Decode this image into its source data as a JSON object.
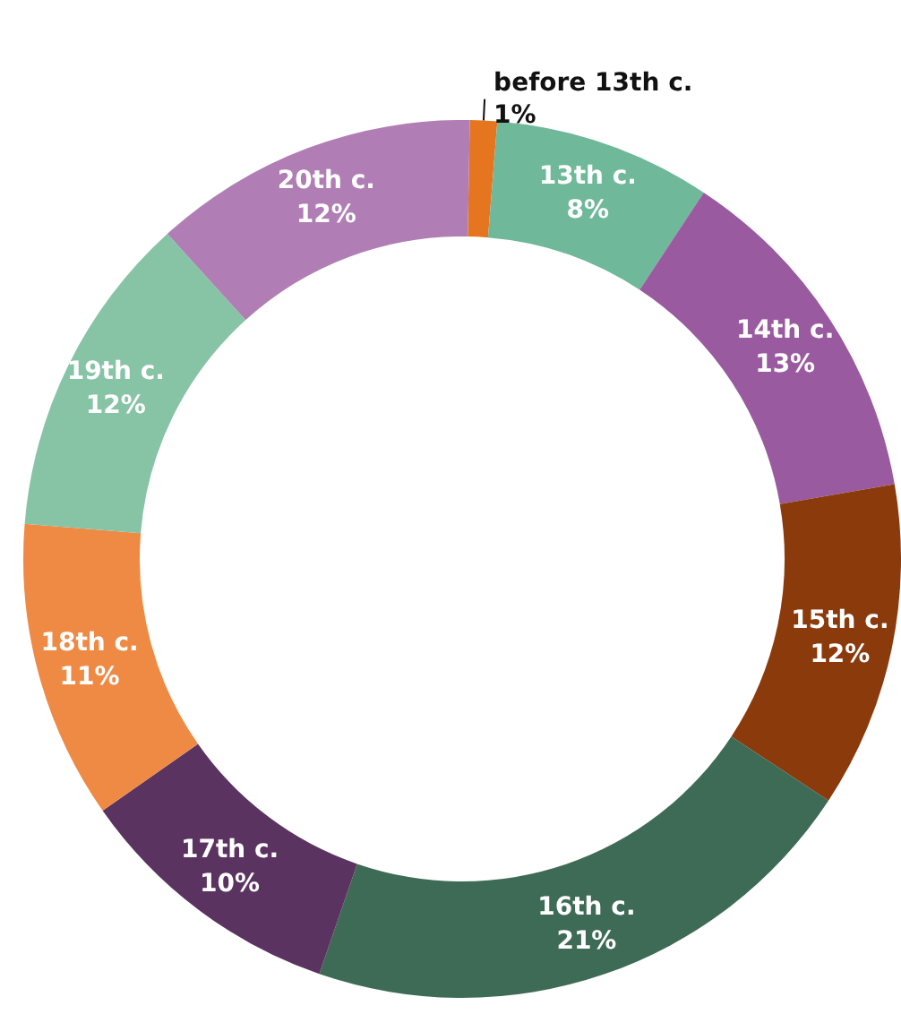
{
  "chart_data": {
    "type": "donut",
    "categories": [
      "before 13th c.",
      "13th c.",
      "14th c.",
      "15th c.",
      "16th c.",
      "17th c.",
      "18th c.",
      "19th c.",
      "20th c."
    ],
    "values": [
      1,
      8,
      13,
      12,
      21,
      10,
      11,
      12,
      12
    ],
    "value_labels": [
      "1%",
      "8%",
      "13%",
      "12%",
      "21%",
      "10%",
      "11%",
      "12%",
      "12%"
    ],
    "colors": [
      "#e5761f",
      "#6fb89a",
      "#9a5aa0",
      "#8b3a0c",
      "#3e6b55",
      "#5b3360",
      "#ef8a44",
      "#87c4a6",
      "#b07eb5"
    ],
    "legend": false
  }
}
